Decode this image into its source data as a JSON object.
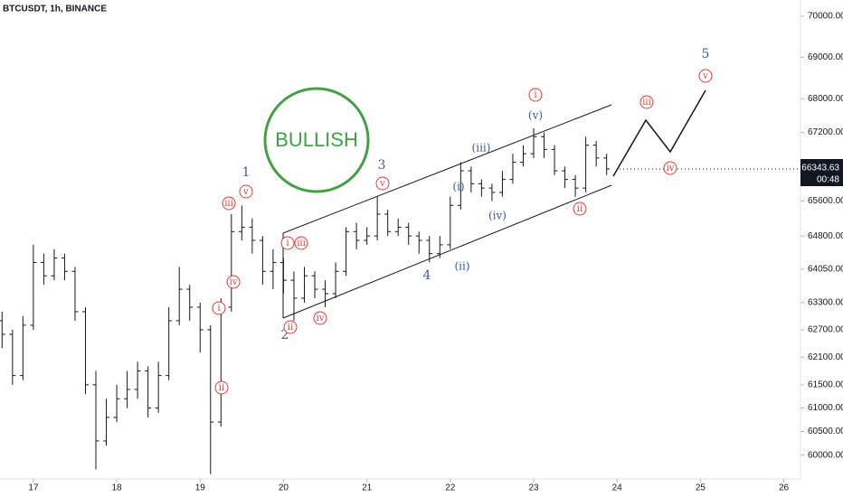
{
  "chart_data": {
    "type": "ohlc",
    "title": "BTCUSDT, 1h, BINANCE",
    "log_scale": true,
    "color": "#131722",
    "xlim": [
      16.6,
      26.2
    ],
    "xticks": [
      17,
      18,
      19,
      20,
      21,
      22,
      23,
      24,
      25,
      26
    ],
    "ylim": [
      59500,
      70400
    ],
    "yticks": [
      {
        "value": 70000,
        "label": "70000.00"
      },
      {
        "value": 69000,
        "label": "69000.00"
      },
      {
        "value": 68000,
        "label": "68000.00"
      },
      {
        "value": 67200,
        "label": "67200.00"
      },
      {
        "value": 65600,
        "label": "65600.00"
      },
      {
        "value": 64800,
        "label": "64800.00"
      },
      {
        "value": 64050,
        "label": "64050.00"
      },
      {
        "value": 63300,
        "label": "63300.00"
      },
      {
        "value": 62700,
        "label": "62700.00"
      },
      {
        "value": 62100,
        "label": "62100.00"
      },
      {
        "value": 61500,
        "label": "61500.00"
      },
      {
        "value": 61000,
        "label": "61000.00"
      },
      {
        "value": 60500,
        "label": "60500.00"
      },
      {
        "value": 60000,
        "label": "60000.00"
      }
    ],
    "x": [
      16.625,
      16.75,
      16.875,
      17,
      17.125,
      17.25,
      17.375,
      17.5,
      17.625,
      17.75,
      17.875,
      18,
      18.125,
      18.25,
      18.375,
      18.5,
      18.625,
      18.75,
      18.875,
      19,
      19.125,
      19.25,
      19.375,
      19.5,
      19.625,
      19.75,
      19.875,
      20,
      20.125,
      20.25,
      20.375,
      20.5,
      20.625,
      20.75,
      20.875,
      21,
      21.125,
      21.25,
      21.375,
      21.5,
      21.625,
      21.75,
      21.875,
      22,
      22.125,
      22.25,
      22.375,
      22.5,
      22.625,
      22.75,
      22.875,
      23,
      23.125,
      23.25,
      23.375,
      23.5,
      23.625,
      23.75,
      23.875
    ],
    "open": [
      62900,
      62600,
      61700,
      62800,
      64200,
      63900,
      64300,
      64000,
      63100,
      61500,
      60300,
      60800,
      61200,
      61400,
      61800,
      61000,
      61700,
      62900,
      63600,
      63200,
      62700,
      60700,
      63200,
      64900,
      65000,
      64700,
      64000,
      64200,
      63800,
      63400,
      63900,
      63600,
      63500,
      64000,
      64900,
      64700,
      64800,
      65300,
      64900,
      65000,
      64800,
      64700,
      64400,
      64600,
      65500,
      66300,
      66000,
      65900,
      65800,
      66100,
      66500,
      66700,
      67100,
      66800,
      66300,
      66100,
      65900,
      66900,
      66600
    ],
    "high": [
      63100,
      62700,
      63000,
      64600,
      64400,
      64500,
      64400,
      64100,
      63200,
      61800,
      61200,
      61500,
      61800,
      62000,
      61900,
      62000,
      63200,
      64100,
      63700,
      63300,
      62800,
      63400,
      65300,
      65500,
      65200,
      64800,
      64500,
      64300,
      64000,
      64100,
      64000,
      63800,
      64200,
      65000,
      65100,
      65000,
      65700,
      65400,
      65200,
      65100,
      64900,
      64800,
      64800,
      65700,
      66500,
      66400,
      66100,
      66000,
      66300,
      66700,
      66900,
      67300,
      67200,
      66900,
      66400,
      66200,
      67100,
      67000,
      66700
    ],
    "low": [
      62300,
      61500,
      61600,
      62700,
      63700,
      63800,
      63800,
      62900,
      61300,
      59700,
      60200,
      60700,
      61000,
      61200,
      60800,
      60900,
      61600,
      62800,
      62900,
      62200,
      59600,
      60600,
      63100,
      64700,
      64400,
      63700,
      63600,
      63500,
      62900,
      63300,
      63400,
      63200,
      63400,
      63900,
      64500,
      64600,
      64700,
      64800,
      64800,
      64600,
      64400,
      64200,
      64300,
      64500,
      65400,
      65800,
      65700,
      65600,
      65700,
      66000,
      66400,
      66600,
      66600,
      66200,
      65900,
      65700,
      65800,
      66400,
      66200
    ],
    "close": [
      62600,
      61700,
      62800,
      64200,
      63900,
      64300,
      64000,
      63100,
      61500,
      60300,
      60800,
      61200,
      61400,
      61800,
      61000,
      61700,
      62900,
      63600,
      63200,
      62700,
      60700,
      63200,
      64900,
      65000,
      64700,
      64000,
      64200,
      63800,
      63400,
      63900,
      63600,
      63500,
      64000,
      64900,
      64700,
      64800,
      65300,
      64900,
      65000,
      64800,
      64700,
      64400,
      64600,
      65500,
      66300,
      66000,
      65900,
      65800,
      66100,
      66500,
      66700,
      67100,
      66800,
      66300,
      66100,
      65900,
      66900,
      66600,
      66343.63
    ],
    "last_price": {
      "value": 66343.63,
      "label": "66343.63",
      "countdown": "00:48"
    },
    "badge": "BULLISH",
    "wave_labels": [
      {
        "text": "1",
        "color": "#3d5a99"
      },
      {
        "text": "2",
        "color": "#3d5a99"
      },
      {
        "text": "3",
        "color": "#3d5a99"
      },
      {
        "text": "4",
        "color": "#3d5a99"
      },
      {
        "text": "5",
        "color": "#3d5a99"
      },
      {
        "text": "(v)",
        "color": "#3d5a99"
      },
      {
        "text": "(iii)",
        "color": "#3d5a99"
      },
      {
        "text": "(i)",
        "color": "#3d5a99"
      },
      {
        "text": "(iv)",
        "color": "#3d5a99"
      },
      {
        "text": "(ii)",
        "color": "#3d5a99"
      },
      {
        "text": "iii",
        "color": "#e53935"
      },
      {
        "text": "v",
        "color": "#e53935"
      },
      {
        "text": "iv",
        "color": "#e53935"
      },
      {
        "text": "i",
        "color": "#e53935"
      },
      {
        "text": "ii",
        "color": "#e53935"
      },
      {
        "text": "i",
        "color": "#e53935"
      },
      {
        "text": "iii",
        "color": "#e53935"
      },
      {
        "text": "ii",
        "color": "#e53935"
      },
      {
        "text": "iv",
        "color": "#e53935"
      },
      {
        "text": "v",
        "color": "#e53935"
      },
      {
        "text": "i",
        "color": "#e53935"
      },
      {
        "text": "ii",
        "color": "#e53935"
      },
      {
        "text": "iii",
        "color": "#e53935"
      },
      {
        "text": "iv",
        "color": "#e53935"
      },
      {
        "text": "v",
        "color": "#e53935"
      }
    ]
  }
}
